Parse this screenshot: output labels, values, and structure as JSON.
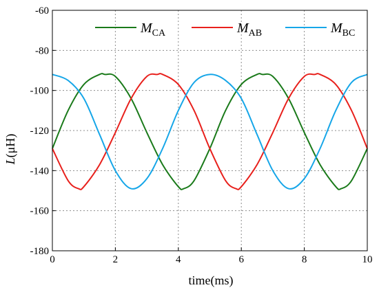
{
  "chart_data": {
    "type": "line",
    "xlabel": "time(ms)",
    "ylabel_main": "L",
    "ylabel_unit": "(μH)",
    "xlim": [
      0,
      10
    ],
    "ylim": [
      -180,
      -60
    ],
    "xticks": [
      0,
      2,
      4,
      6,
      8,
      10
    ],
    "yticks": [
      -60,
      -80,
      -100,
      -120,
      -140,
      -160,
      -180
    ],
    "grid": true,
    "grid_style": "dotted",
    "legend_position": "top",
    "series": [
      {
        "name_main": "M",
        "name_sub": "CA",
        "color": "#1a7a1a",
        "x": [
          0,
          0.5,
          1.0,
          1.5,
          1.67,
          2.0,
          2.5,
          3.0,
          3.5,
          4.0,
          4.17,
          4.5,
          5.0,
          5.5,
          6.0,
          6.5,
          6.67,
          7.0,
          7.5,
          8.0,
          8.5,
          9.0,
          9.17,
          9.5,
          10.0
        ],
        "y": [
          -129,
          -110,
          -97,
          -92,
          -92,
          -93,
          -104,
          -121,
          -137,
          -148,
          -149,
          -145,
          -129,
          -110,
          -97,
          -92,
          -92,
          -93,
          -104,
          -121,
          -137,
          -148,
          -149,
          -145,
          -129
        ]
      },
      {
        "name_main": "M",
        "name_sub": "AB",
        "color": "#e8201c",
        "x": [
          0,
          0.5,
          0.83,
          1.0,
          1.5,
          2.0,
          2.5,
          3.0,
          3.33,
          3.5,
          4.0,
          4.5,
          5.0,
          5.5,
          5.83,
          6.0,
          6.5,
          7.0,
          7.5,
          8.0,
          8.33,
          8.5,
          9.0,
          9.5,
          10.0
        ],
        "y": [
          -129,
          -145,
          -149,
          -148,
          -137,
          -121,
          -104,
          -93,
          -92,
          -92,
          -97,
          -110,
          -129,
          -145,
          -149,
          -148,
          -137,
          -121,
          -104,
          -93,
          -92,
          -92,
          -97,
          -110,
          -129
        ]
      },
      {
        "name_main": "M",
        "name_sub": "BC",
        "color": "#16a6e8",
        "x": [
          0,
          0.5,
          1.0,
          1.5,
          2.0,
          2.5,
          3.0,
          3.5,
          4.0,
          4.5,
          5.0,
          5.5,
          6.0,
          6.5,
          7.0,
          7.5,
          8.0,
          8.5,
          9.0,
          9.5,
          10.0
        ],
        "y": [
          -92,
          -95,
          -104,
          -122,
          -140,
          -149,
          -144,
          -129,
          -110,
          -96,
          -92,
          -95,
          -104,
          -122,
          -140,
          -149,
          -144,
          -129,
          -110,
          -96,
          -92
        ]
      }
    ]
  }
}
